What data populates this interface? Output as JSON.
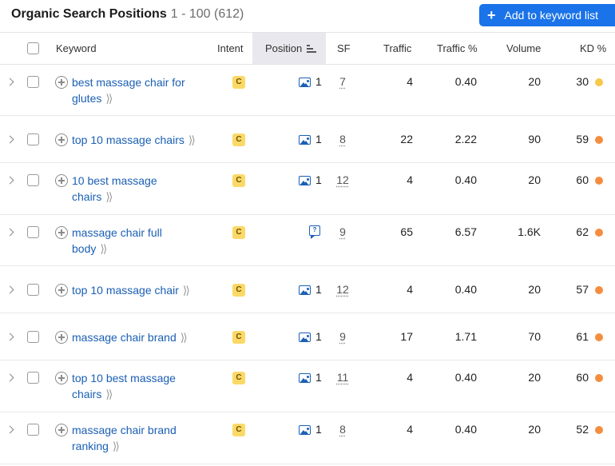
{
  "header": {
    "title": "Organic Search Positions",
    "range": "1 - 100 (612)",
    "add_button_label": "Add to keyword list"
  },
  "columns": {
    "keyword": "Keyword",
    "intent": "Intent",
    "position": "Position",
    "sf": "SF",
    "traffic": "Traffic",
    "traffic_pct": "Traffic %",
    "volume": "Volume",
    "kd": "KD %"
  },
  "colors": {
    "accent": "#1a73e8",
    "link": "#1a5fb4",
    "intent_badge": "#fcd967",
    "kd_yellow": "#f7c948",
    "kd_orange": "#f58d3f"
  },
  "rows": [
    {
      "keyword_line1": "best massage chair for",
      "keyword_line2": "glutes",
      "intent": "C",
      "serp_icon": "image-icon",
      "position": "1",
      "sf": "7",
      "traffic": "4",
      "traffic_pct": "0.40",
      "volume": "20",
      "kd": "30",
      "kd_color": "yellow"
    },
    {
      "keyword_line1": "top 10 massage chairs",
      "keyword_line2": "",
      "intent": "C",
      "serp_icon": "image-icon",
      "position": "1",
      "sf": "8",
      "traffic": "22",
      "traffic_pct": "2.22",
      "volume": "90",
      "kd": "59",
      "kd_color": "orange"
    },
    {
      "keyword_line1": "10 best massage",
      "keyword_line2": "chairs",
      "intent": "C",
      "serp_icon": "image-icon",
      "position": "1",
      "sf": "12",
      "traffic": "4",
      "traffic_pct": "0.40",
      "volume": "20",
      "kd": "60",
      "kd_color": "orange"
    },
    {
      "keyword_line1": "massage chair full",
      "keyword_line2": "body",
      "intent": "C",
      "serp_icon": "question-answer-icon",
      "position": "",
      "sf": "9",
      "traffic": "65",
      "traffic_pct": "6.57",
      "volume": "1.6K",
      "kd": "62",
      "kd_color": "orange"
    },
    {
      "keyword_line1": "top 10 massage chair",
      "keyword_line2": "",
      "intent": "C",
      "serp_icon": "image-icon",
      "position": "1",
      "sf": "12",
      "traffic": "4",
      "traffic_pct": "0.40",
      "volume": "20",
      "kd": "57",
      "kd_color": "orange"
    },
    {
      "keyword_line1": "massage chair brand",
      "keyword_line2": "",
      "intent": "C",
      "serp_icon": "image-icon",
      "position": "1",
      "sf": "9",
      "traffic": "17",
      "traffic_pct": "1.71",
      "volume": "70",
      "kd": "61",
      "kd_color": "orange"
    },
    {
      "keyword_line1": "top 10 best massage",
      "keyword_line2": "chairs",
      "intent": "C",
      "serp_icon": "image-icon",
      "position": "1",
      "sf": "11",
      "traffic": "4",
      "traffic_pct": "0.40",
      "volume": "20",
      "kd": "60",
      "kd_color": "orange"
    },
    {
      "keyword_line1": "massage chair brand",
      "keyword_line2": "ranking",
      "intent": "C",
      "serp_icon": "image-icon",
      "position": "1",
      "sf": "8",
      "traffic": "4",
      "traffic_pct": "0.40",
      "volume": "20",
      "kd": "52",
      "kd_color": "orange"
    }
  ]
}
